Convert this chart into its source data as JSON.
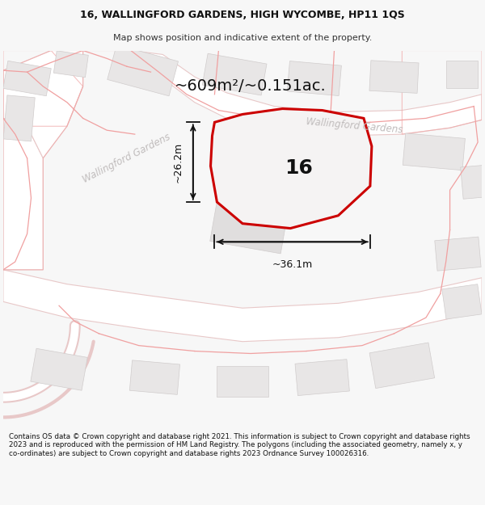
{
  "title_line1": "16, WALLINGFORD GARDENS, HIGH WYCOMBE, HP11 1QS",
  "title_line2": "Map shows position and indicative extent of the property.",
  "area_label": "~609m²/~0.151ac.",
  "property_number": "16",
  "dim_width": "~36.1m",
  "dim_height": "~26.2m",
  "street_label_diag1": "Wallingford Gardens",
  "street_label_diag2": "Wallingford Gardens",
  "footer_text": "Contains OS data © Crown copyright and database right 2021. This information is subject to Crown copyright and database rights 2023 and is reproduced with the permission of HM Land Registry. The polygons (including the associated geometry, namely x, y co-ordinates) are subject to Crown copyright and database rights 2023 Ordnance Survey 100026316.",
  "bg_color": "#f7f7f7",
  "map_bg": "#f2f0f0",
  "road_fill": "#ffffff",
  "road_edge": "#e8c8c8",
  "parcel_edge": "#f0a8a8",
  "building_fill": "#e8e6e6",
  "building_edge": "#d0cccc",
  "plot_fill": "#f5f3f3",
  "plot_stroke": "#cc0000",
  "dim_color": "#111111"
}
